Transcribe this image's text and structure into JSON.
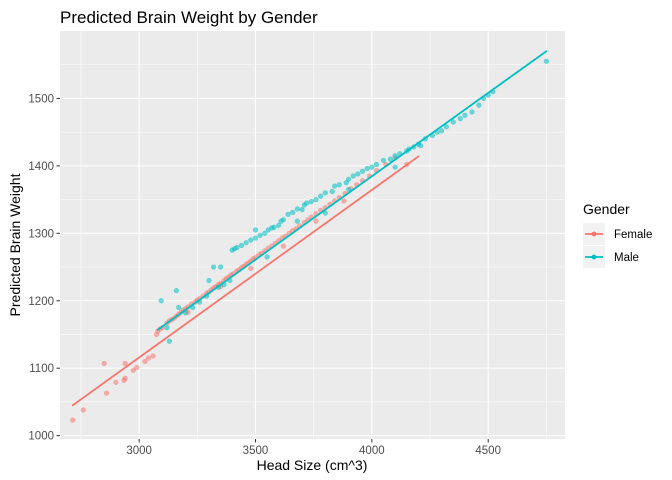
{
  "chart_data": {
    "type": "scatter",
    "title": "Predicted Brain Weight by Gender",
    "xlabel": "Head Size (cm^3)",
    "ylabel": "Predicted Brain Weight",
    "xlim": [
      2660,
      4830
    ],
    "ylim": [
      995,
      1600
    ],
    "x_ticks": [
      3000,
      3500,
      4000,
      4500
    ],
    "y_ticks": [
      1000,
      1100,
      1200,
      1300,
      1400,
      1500
    ],
    "grid": true,
    "legend": {
      "title": "Gender",
      "position": "right"
    },
    "series": [
      {
        "name": "Female",
        "color": "#F8766D",
        "fit_line": [
          [
            2715,
            1045
          ],
          [
            4200,
            1414
          ]
        ],
        "points": [
          [
            2715,
            1023
          ],
          [
            2760,
            1038
          ],
          [
            2850,
            1107
          ],
          [
            2860,
            1063
          ],
          [
            2900,
            1079
          ],
          [
            2935,
            1082
          ],
          [
            2940,
            1085
          ],
          [
            2975,
            1097
          ],
          [
            2990,
            1101
          ],
          [
            3025,
            1110
          ],
          [
            3040,
            1115
          ],
          [
            3060,
            1118
          ],
          [
            3075,
            1150
          ],
          [
            3080,
            1155
          ],
          [
            3090,
            1158
          ],
          [
            3100,
            1160
          ],
          [
            3120,
            1167
          ],
          [
            3130,
            1170
          ],
          [
            3140,
            1172
          ],
          [
            3150,
            1174
          ],
          [
            3160,
            1177
          ],
          [
            3170,
            1180
          ],
          [
            3180,
            1183
          ],
          [
            3190,
            1186
          ],
          [
            3200,
            1188
          ],
          [
            3210,
            1191
          ],
          [
            3225,
            1195
          ],
          [
            3240,
            1198
          ],
          [
            3250,
            1201
          ],
          [
            3260,
            1203
          ],
          [
            3275,
            1207
          ],
          [
            3290,
            1211
          ],
          [
            3300,
            1213
          ],
          [
            3310,
            1216
          ],
          [
            3320,
            1219
          ],
          [
            3330,
            1221
          ],
          [
            3340,
            1224
          ],
          [
            3350,
            1226
          ],
          [
            3365,
            1230
          ],
          [
            3375,
            1233
          ],
          [
            3385,
            1235
          ],
          [
            3395,
            1238
          ],
          [
            3405,
            1240
          ],
          [
            3420,
            1244
          ],
          [
            3430,
            1246
          ],
          [
            3440,
            1249
          ],
          [
            3450,
            1251
          ],
          [
            3460,
            1254
          ],
          [
            3470,
            1256
          ],
          [
            3480,
            1259
          ],
          [
            3490,
            1262
          ],
          [
            3500,
            1264
          ],
          [
            3515,
            1268
          ],
          [
            3525,
            1270
          ],
          [
            3540,
            1274
          ],
          [
            3555,
            1278
          ],
          [
            3570,
            1281
          ],
          [
            3585,
            1285
          ],
          [
            3600,
            1289
          ],
          [
            3615,
            1293
          ],
          [
            3630,
            1296
          ],
          [
            3645,
            1300
          ],
          [
            3660,
            1304
          ],
          [
            3675,
            1307
          ],
          [
            3690,
            1311
          ],
          [
            3710,
            1316
          ],
          [
            3725,
            1320
          ],
          [
            3740,
            1324
          ],
          [
            3760,
            1329
          ],
          [
            3780,
            1334
          ],
          [
            3800,
            1338
          ],
          [
            3820,
            1343
          ],
          [
            3840,
            1348
          ],
          [
            3860,
            1353
          ],
          [
            3885,
            1359
          ],
          [
            3910,
            1366
          ],
          [
            3935,
            1372
          ],
          [
            3960,
            1378
          ],
          [
            3990,
            1385
          ],
          [
            4020,
            1393
          ],
          [
            4060,
            1402
          ],
          [
            4100,
            1412
          ],
          [
            4150,
            1402
          ],
          [
            3210,
            1183
          ],
          [
            3350,
            1221
          ],
          [
            3480,
            1248
          ],
          [
            3620,
            1281
          ],
          [
            3760,
            1318
          ],
          [
            3880,
            1348
          ],
          [
            2940,
            1107
          ]
        ]
      },
      {
        "name": "Male",
        "color": "#00BFC4",
        "fit_line": [
          [
            3080,
            1157
          ],
          [
            4750,
            1570
          ]
        ],
        "points": [
          [
            3095,
            1200
          ],
          [
            3120,
            1160
          ],
          [
            3130,
            1140
          ],
          [
            3160,
            1215
          ],
          [
            3170,
            1190
          ],
          [
            3200,
            1182
          ],
          [
            3230,
            1190
          ],
          [
            3260,
            1198
          ],
          [
            3290,
            1207
          ],
          [
            3320,
            1250
          ],
          [
            3340,
            1220
          ],
          [
            3365,
            1224
          ],
          [
            3390,
            1230
          ],
          [
            3400,
            1275
          ],
          [
            3410,
            1277
          ],
          [
            3420,
            1279
          ],
          [
            3440,
            1282
          ],
          [
            3460,
            1286
          ],
          [
            3480,
            1290
          ],
          [
            3500,
            1293
          ],
          [
            3520,
            1297
          ],
          [
            3540,
            1300
          ],
          [
            3555,
            1305
          ],
          [
            3570,
            1308
          ],
          [
            3580,
            1309
          ],
          [
            3600,
            1312
          ],
          [
            3610,
            1318
          ],
          [
            3620,
            1320
          ],
          [
            3640,
            1328
          ],
          [
            3660,
            1331
          ],
          [
            3680,
            1336
          ],
          [
            3700,
            1335
          ],
          [
            3710,
            1342
          ],
          [
            3720,
            1345
          ],
          [
            3740,
            1347
          ],
          [
            3760,
            1350
          ],
          [
            3780,
            1355
          ],
          [
            3800,
            1360
          ],
          [
            3830,
            1362
          ],
          [
            3840,
            1370
          ],
          [
            3860,
            1372
          ],
          [
            3890,
            1375
          ],
          [
            3900,
            1380
          ],
          [
            3920,
            1385
          ],
          [
            3940,
            1388
          ],
          [
            3960,
            1392
          ],
          [
            3980,
            1396
          ],
          [
            4000,
            1398
          ],
          [
            4020,
            1402
          ],
          [
            4050,
            1408
          ],
          [
            4080,
            1410
          ],
          [
            4100,
            1415
          ],
          [
            4120,
            1418
          ],
          [
            4150,
            1422
          ],
          [
            4160,
            1425
          ],
          [
            4180,
            1428
          ],
          [
            4200,
            1432
          ],
          [
            4210,
            1430
          ],
          [
            4230,
            1440
          ],
          [
            4260,
            1445
          ],
          [
            4280,
            1450
          ],
          [
            4300,
            1452
          ],
          [
            4320,
            1458
          ],
          [
            4350,
            1465
          ],
          [
            4380,
            1470
          ],
          [
            4400,
            1475
          ],
          [
            4430,
            1480
          ],
          [
            4460,
            1490
          ],
          [
            4480,
            1500
          ],
          [
            4500,
            1505
          ],
          [
            4520,
            1510
          ],
          [
            4750,
            1555
          ],
          [
            3680,
            1318
          ],
          [
            3800,
            1330
          ],
          [
            3500,
            1305
          ],
          [
            3350,
            1250
          ],
          [
            3900,
            1365
          ],
          [
            4100,
            1398
          ],
          [
            3550,
            1265
          ],
          [
            3300,
            1230
          ]
        ]
      }
    ]
  }
}
